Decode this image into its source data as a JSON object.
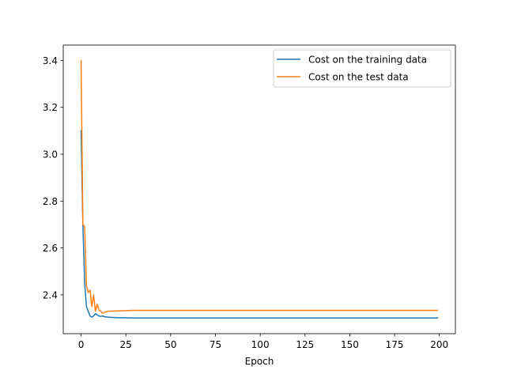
{
  "chart_data": {
    "type": "line",
    "title": "",
    "xlabel": "Epoch",
    "ylabel": "",
    "xlim": [
      -9.95,
      208.95
    ],
    "ylim": [
      2.2345,
      3.4655
    ],
    "xticks": [
      0,
      25,
      50,
      75,
      100,
      125,
      150,
      175,
      200
    ],
    "yticks": [
      2.4,
      2.6,
      2.8,
      3.0,
      3.2,
      3.4
    ],
    "ytick_labels": [
      "2.4",
      "2.6",
      "2.8",
      "3.0",
      "3.2",
      "3.4"
    ],
    "grid": false,
    "legend_position": "top-right",
    "series": [
      {
        "name": "Cost on the training data",
        "color": "#1f77b4",
        "points": [
          [
            0,
            3.1
          ],
          [
            1,
            2.7
          ],
          [
            2,
            2.45
          ],
          [
            3,
            2.35
          ],
          [
            4,
            2.33
          ],
          [
            5,
            2.31
          ],
          [
            6,
            2.305
          ],
          [
            7,
            2.31
          ],
          [
            8,
            2.32
          ],
          [
            9,
            2.315
          ],
          [
            10,
            2.31
          ],
          [
            11,
            2.308
          ],
          [
            12,
            2.31
          ],
          [
            13,
            2.307
          ],
          [
            14,
            2.306
          ],
          [
            15,
            2.305
          ],
          [
            17,
            2.304
          ],
          [
            20,
            2.303
          ],
          [
            25,
            2.302
          ],
          [
            30,
            2.3015
          ],
          [
            199,
            2.3015
          ]
        ]
      },
      {
        "name": "Cost on the test data",
        "color": "#ff7f0e",
        "points": [
          [
            0,
            3.4
          ],
          [
            1,
            2.7
          ],
          [
            2,
            2.69
          ],
          [
            3,
            2.44
          ],
          [
            4,
            2.41
          ],
          [
            5,
            2.42
          ],
          [
            6,
            2.35
          ],
          [
            7,
            2.4
          ],
          [
            8,
            2.33
          ],
          [
            9,
            2.36
          ],
          [
            10,
            2.335
          ],
          [
            11,
            2.33
          ],
          [
            12,
            2.322
          ],
          [
            13,
            2.325
          ],
          [
            14,
            2.328
          ],
          [
            15,
            2.33
          ],
          [
            18,
            2.331
          ],
          [
            22,
            2.332
          ],
          [
            26,
            2.333
          ],
          [
            30,
            2.334
          ],
          [
            199,
            2.334
          ]
        ]
      }
    ]
  }
}
